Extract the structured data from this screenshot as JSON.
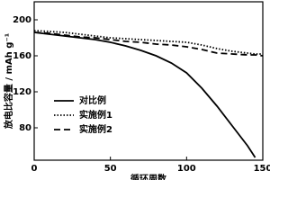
{
  "chart_data": {
    "type": "line",
    "xlabel": "循环周数",
    "ylabel": "放电比容量 / mAh g⁻¹",
    "x": [
      0,
      10,
      20,
      30,
      40,
      50,
      60,
      70,
      80,
      90,
      100,
      110,
      120,
      130,
      140,
      145,
      150
    ],
    "series": [
      {
        "name": "对比例",
        "color": "#000000",
        "dash": "solid",
        "values": [
          186,
          184,
          182,
          180,
          178,
          175,
          171,
          166,
          160,
          152,
          141,
          124,
          104,
          82,
          60,
          47,
          null
        ]
      },
      {
        "name": "实施例1",
        "color": "#000000",
        "dash": "dotted",
        "values": [
          188,
          187,
          186,
          184,
          182,
          180,
          179,
          178,
          177,
          176,
          175,
          172,
          168,
          165,
          163,
          162,
          162
        ]
      },
      {
        "name": "实施例2",
        "color": "#000000",
        "dash": "dashed",
        "values": [
          186,
          185,
          183,
          181,
          180,
          178,
          176,
          175,
          173,
          172,
          170,
          167,
          163,
          162,
          161,
          161,
          160
        ]
      }
    ],
    "xlim": [
      0,
      150
    ],
    "xticks": [
      0,
      50,
      100,
      150
    ],
    "ylim": [
      44,
      220
    ],
    "yticks": [
      80,
      120,
      160,
      200
    ],
    "legend": "lower-left"
  }
}
